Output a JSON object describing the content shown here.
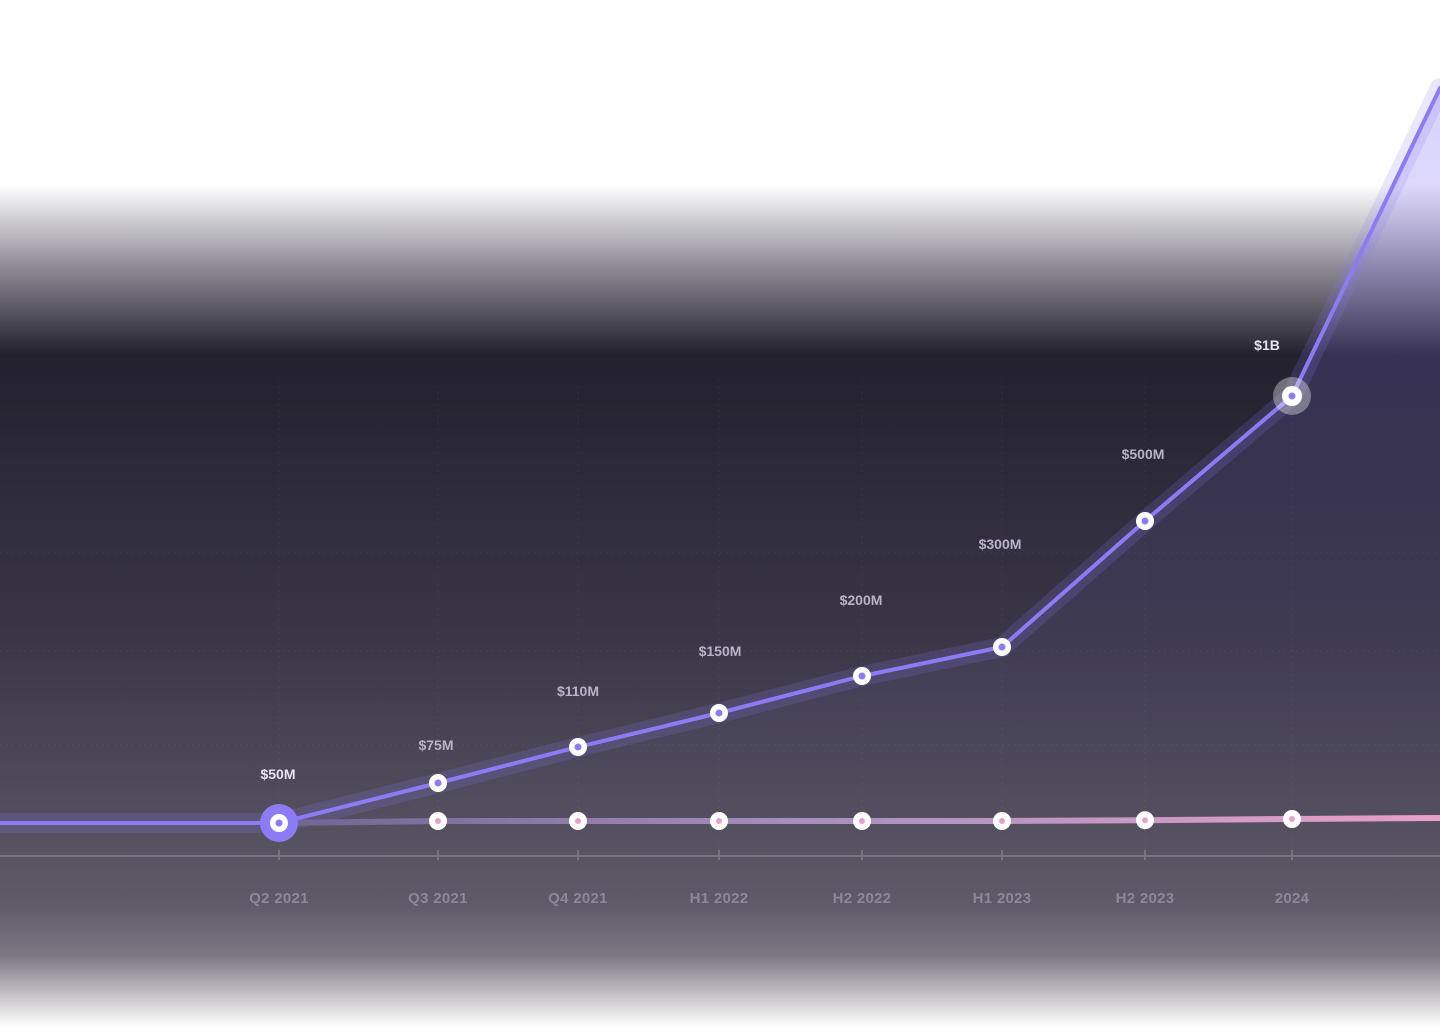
{
  "chart_data": {
    "type": "line",
    "categories": [
      "Q2 2021",
      "Q3 2021",
      "Q4 2021",
      "H1 2022",
      "H2 2022",
      "H1 2023",
      "H2 2023",
      "2024"
    ],
    "series": [
      {
        "values": [
          50,
          75,
          110,
          150,
          200,
          300,
          500,
          1000
        ],
        "value_labels": [
          "$50M",
          "$75M",
          "$110M",
          "$150M",
          "$200M",
          "$300M",
          "$500M",
          "$1B"
        ],
        "color": "#8B7CF6"
      },
      {
        "values": [
          50,
          50,
          50,
          50,
          50,
          50,
          52,
          55
        ],
        "color": "#E8A0C8"
      }
    ],
    "title": "",
    "xlabel": "",
    "ylabel": "",
    "grid": true,
    "legend": "none"
  },
  "colors": {
    "accent": "#8B7CF6",
    "secondary": "#E8A0C8",
    "background_dark": "#23212E",
    "background_mid": "#3A3647",
    "label": "#B8B3C8",
    "tick_label": "#8C879A",
    "baseline": "#77737F"
  }
}
